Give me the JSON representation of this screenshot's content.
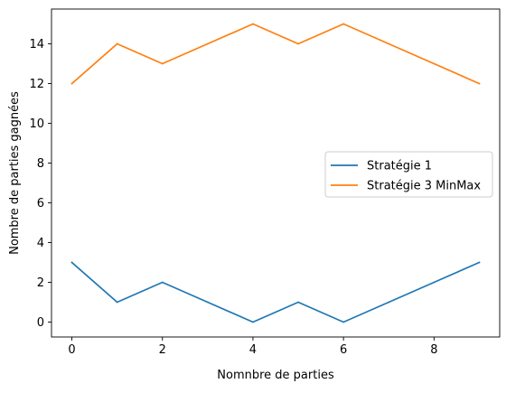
{
  "chart_data": {
    "type": "line",
    "title": "",
    "xlabel": "Nomnbre de parties",
    "ylabel": "Nombre de parties gagnées",
    "xlim": [
      -0.45,
      9.45
    ],
    "ylim": [
      -0.75,
      15.75
    ],
    "xticks": [
      0,
      2,
      4,
      6,
      8
    ],
    "xtick_labels": [
      "0",
      "2",
      "4",
      "6",
      "8"
    ],
    "yticks": [
      0,
      2,
      4,
      6,
      8,
      10,
      12,
      14
    ],
    "ytick_labels": [
      "0",
      "2",
      "4",
      "6",
      "8",
      "10",
      "12",
      "14"
    ],
    "grid": false,
    "legend_position": "center-right",
    "x": [
      0,
      1,
      2,
      3,
      4,
      5,
      6,
      7,
      8,
      9
    ],
    "series": [
      {
        "name": "Stratégie 1",
        "color": "#1f77b4",
        "values": [
          3,
          1,
          2,
          1,
          0,
          1,
          0,
          1,
          2,
          3
        ]
      },
      {
        "name": "Stratégie 3 MinMax",
        "color": "#ff7f0e",
        "values": [
          12,
          14,
          13,
          14,
          15,
          14,
          15,
          14,
          13,
          12
        ]
      }
    ]
  }
}
